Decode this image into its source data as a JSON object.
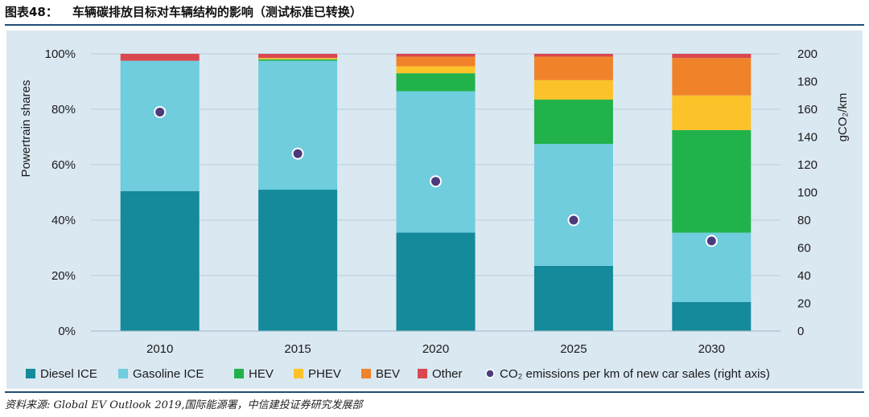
{
  "figure": {
    "label": "图表48：",
    "title": "车辆碳排放目标对车辆结构的影响（测试标准已转换）",
    "source": "资料来源: Global EV Outlook 2019,国际能源署，中信建投证券研究发展部"
  },
  "chart_data": {
    "type": "bar",
    "stacked": true,
    "categories": [
      "2010",
      "2015",
      "2020",
      "2025",
      "2030"
    ],
    "ylabel": "Powertrain shares",
    "y2label": "gCO₂/km",
    "ylim": [
      0,
      100
    ],
    "y2lim": [
      0,
      200
    ],
    "yticks": [
      "0%",
      "20%",
      "40%",
      "60%",
      "80%",
      "100%"
    ],
    "y2ticks": [
      "0",
      "20",
      "40",
      "60",
      "80",
      "100",
      "120",
      "140",
      "160",
      "180",
      "200"
    ],
    "grid": true,
    "legend_position": "bottom",
    "series": [
      {
        "name": "Diesel ICE",
        "color": "#148a9a",
        "values": [
          50.5,
          51,
          35.5,
          23.5,
          10.5
        ]
      },
      {
        "name": "Gasoline ICE",
        "color": "#6fcddd",
        "values": [
          47,
          46.5,
          51,
          44,
          25
        ]
      },
      {
        "name": "HEV",
        "color": "#22b24c",
        "values": [
          0,
          0.5,
          6.5,
          16,
          37
        ]
      },
      {
        "name": "PHEV",
        "color": "#fcc229",
        "values": [
          0,
          0.5,
          2.5,
          7,
          12.5
        ]
      },
      {
        "name": "BEV",
        "color": "#f0832a",
        "values": [
          0,
          0,
          3.5,
          8.5,
          13.5
        ]
      },
      {
        "name": "Other",
        "color": "#d9484f",
        "values": [
          2.5,
          1.5,
          1,
          1,
          1.5
        ]
      }
    ],
    "line_series": {
      "name": "CO₂ emissions per km of new car sales (right axis)",
      "color": "#4c3a7e",
      "axis": "right",
      "values": [
        158,
        128,
        108,
        80,
        65
      ]
    }
  }
}
